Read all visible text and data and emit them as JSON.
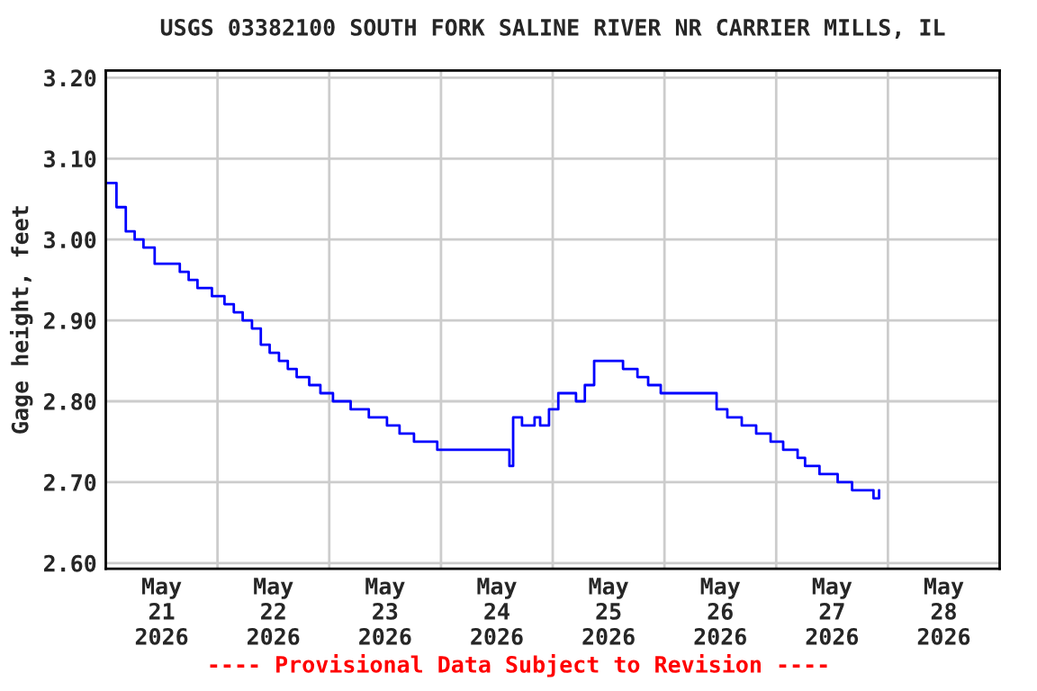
{
  "chart_data": {
    "type": "step",
    "title": "USGS 03382100 SOUTH FORK SALINE RIVER NR CARRIER MILLS, IL",
    "ylabel": "Gage height, feet",
    "annotations": [
      "---- Provisional Data Subject to Revision ----"
    ],
    "x": [
      "2026-05-21T00:00",
      "2026-05-21T02:18",
      "2026-05-21T04:18",
      "2026-05-21T06:12",
      "2026-05-21T08:06",
      "2026-05-21T10:30",
      "2026-05-21T13:54",
      "2026-05-21T15:54",
      "2026-05-21T17:48",
      "2026-05-21T19:42",
      "2026-05-21T22:48",
      "2026-05-22T01:30",
      "2026-05-22T03:30",
      "2026-05-22T05:24",
      "2026-05-22T07:24",
      "2026-05-22T09:18",
      "2026-05-22T11:12",
      "2026-05-22T13:12",
      "2026-05-22T15:06",
      "2026-05-22T17:00",
      "2026-05-22T19:42",
      "2026-05-22T22:06",
      "2026-05-23T00:48",
      "2026-05-23T04:36",
      "2026-05-23T08:30",
      "2026-05-23T12:24",
      "2026-05-23T15:06",
      "2026-05-23T18:12",
      "2026-05-23T23:12",
      "2026-05-24T14:18",
      "2026-05-24T14:42",
      "2026-05-24T15:30",
      "2026-05-24T17:24",
      "2026-05-24T20:06",
      "2026-05-24T21:18",
      "2026-05-24T23:12",
      "2026-05-25T01:12",
      "2026-05-25T04:18",
      "2026-05-25T05:00",
      "2026-05-25T06:54",
      "2026-05-25T08:54",
      "2026-05-25T14:42",
      "2026-05-25T15:06",
      "2026-05-25T18:12",
      "2026-05-25T20:30",
      "2026-05-25T23:12",
      "2026-05-26T09:42",
      "2026-05-26T11:12",
      "2026-05-26T13:30",
      "2026-05-26T16:36",
      "2026-05-26T19:42",
      "2026-05-26T22:48",
      "2026-05-27T01:30",
      "2026-05-27T04:36",
      "2026-05-27T06:12",
      "2026-05-27T09:18",
      "2026-05-27T13:12",
      "2026-05-27T15:06",
      "2026-05-27T16:18",
      "2026-05-27T20:30",
      "2026-05-27T20:54",
      "2026-05-27T22:06"
    ],
    "series": [
      {
        "color": "#0000ff",
        "values": [
          3.07,
          3.04,
          3.01,
          3.0,
          2.99,
          2.97,
          2.97,
          2.96,
          2.95,
          2.94,
          2.93,
          2.92,
          2.91,
          2.9,
          2.89,
          2.87,
          2.86,
          2.85,
          2.84,
          2.83,
          2.82,
          2.81,
          2.8,
          2.79,
          2.78,
          2.77,
          2.76,
          2.75,
          2.74,
          2.74,
          2.72,
          2.78,
          2.77,
          2.78,
          2.77,
          2.79,
          2.81,
          2.81,
          2.8,
          2.82,
          2.85,
          2.85,
          2.84,
          2.83,
          2.82,
          2.81,
          2.81,
          2.79,
          2.78,
          2.77,
          2.76,
          2.75,
          2.74,
          2.73,
          2.72,
          2.71,
          2.7,
          2.7,
          2.69,
          2.69,
          2.68,
          2.69
        ]
      }
    ],
    "xlim": [
      "2026-05-21T00:00",
      "2026-05-29T00:00"
    ],
    "xticks": [
      {
        "value": "2026-05-21T12:00",
        "label": "May\n21\n2026"
      },
      {
        "value": "2026-05-22T00:00",
        "label": null
      },
      {
        "value": "2026-05-22T12:00",
        "label": "May\n22\n2026"
      },
      {
        "value": "2026-05-23T00:00",
        "label": null
      },
      {
        "value": "2026-05-23T12:00",
        "label": "May\n23\n2026"
      },
      {
        "value": "2026-05-24T00:00",
        "label": null
      },
      {
        "value": "2026-05-24T12:00",
        "label": "May\n24\n2026"
      },
      {
        "value": "2026-05-25T00:00",
        "label": null
      },
      {
        "value": "2026-05-25T12:00",
        "label": "May\n25\n2026"
      },
      {
        "value": "2026-05-26T00:00",
        "label": null
      },
      {
        "value": "2026-05-26T12:00",
        "label": "May\n26\n2026"
      },
      {
        "value": "2026-05-27T00:00",
        "label": null
      },
      {
        "value": "2026-05-27T12:00",
        "label": "May\n27\n2026"
      },
      {
        "value": "2026-05-28T00:00",
        "label": null
      },
      {
        "value": "2026-05-28T12:00",
        "label": "May\n28\n2026"
      }
    ],
    "ylim": [
      2.593,
      3.209
    ],
    "yticks": [
      {
        "value": 2.6,
        "label": "2.60"
      },
      {
        "value": 2.7,
        "label": "2.70"
      },
      {
        "value": 2.8,
        "label": "2.80"
      },
      {
        "value": 2.9,
        "label": "2.90"
      },
      {
        "value": 3.0,
        "label": "3.00"
      },
      {
        "value": 3.1,
        "label": "3.10"
      },
      {
        "value": 3.2,
        "label": "3.20"
      }
    ],
    "grid": true,
    "line_style": "solid"
  }
}
